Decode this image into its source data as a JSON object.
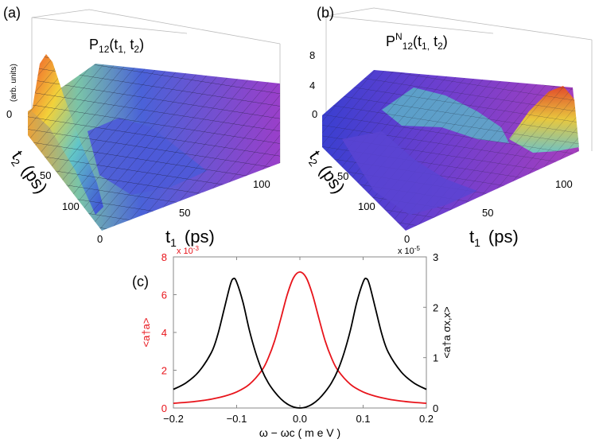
{
  "panels": {
    "a": {
      "label": "(a)",
      "title_main": "P",
      "title_sub": "12",
      "title_args": "(t",
      "title_arg1_sub": "1,",
      "title_arg2": " t",
      "title_arg2_sub": "2",
      "title_close": ")",
      "z_label": "(arb. units)",
      "z_tick": "0",
      "t2_label": "t",
      "t2_sub": "2",
      "t2_unit": "(ps)",
      "t1_label": "t",
      "t1_sub": "1",
      "t1_unit": "(ps)",
      "t2_ticks": [
        "50",
        "100"
      ],
      "t1_ticks": [
        "0",
        "50",
        "100"
      ]
    },
    "b": {
      "label": "(b)",
      "title_main": "P",
      "title_sup": "N",
      "title_sub": "12",
      "title_args": "(t",
      "title_arg1_sub": "1,",
      "title_arg2": " t",
      "title_arg2_sub": "2",
      "title_close": ")",
      "z_ticks": [
        "8",
        "4",
        "0"
      ],
      "t2_label": "t",
      "t2_sub": "2",
      "t2_unit": "(ps)",
      "t1_label": "t",
      "t1_sub": "1",
      "t1_unit": "(ps)",
      "t2_ticks": [
        "50",
        "100"
      ],
      "t1_ticks": [
        "0",
        "50",
        "100"
      ]
    },
    "c": {
      "label": "(c)",
      "left_scale": "x 10",
      "left_scale_exp": "-3",
      "right_scale": "x 10",
      "right_scale_exp": "-5",
      "left_ylabel": "<a†a>",
      "right_ylabel": "<a†a σx,x>",
      "xlabel": "ω − ωc   ( m e V )"
    }
  },
  "colors": {
    "red": "#e8141b",
    "black": "#000000",
    "axis": "#888888"
  },
  "chart_data": [
    {
      "type": "line",
      "title": "",
      "xlabel": "ω − ωc (meV)",
      "x_ticks": [
        -0.2,
        -0.1,
        0.0,
        0.1,
        0.2
      ],
      "x_tick_labels": [
        "−0.2",
        "−0.1",
        "0.0",
        "0.1",
        "0.2"
      ],
      "xlim": [
        -0.2,
        0.2
      ],
      "y_left": {
        "label": "<a†a>",
        "scale": "x 10^-3",
        "ylim": [
          0,
          8
        ],
        "ticks": [
          "0",
          "2",
          "4",
          "6",
          "8"
        ],
        "color": "#e8141b"
      },
      "y_right": {
        "label": "<a†a σx,x>",
        "scale": "x 10^-5",
        "ylim": [
          0,
          3
        ],
        "ticks": [
          "0",
          "1",
          "2",
          "3"
        ],
        "color": "#000000"
      },
      "series": [
        {
          "name": "<a†a>",
          "axis": "left",
          "color": "#e8141b",
          "x": [
            -0.2,
            -0.18,
            -0.16,
            -0.14,
            -0.12,
            -0.1,
            -0.08,
            -0.06,
            -0.05,
            -0.04,
            -0.03,
            -0.02,
            -0.01,
            0.0,
            0.01,
            0.02,
            0.03,
            0.04,
            0.05,
            0.06,
            0.08,
            0.1,
            0.12,
            0.14,
            0.16,
            0.18,
            0.2
          ],
          "values": [
            0.25,
            0.3,
            0.37,
            0.47,
            0.62,
            0.85,
            1.25,
            2.0,
            2.65,
            3.55,
            4.75,
            6.0,
            6.9,
            7.2,
            6.9,
            6.0,
            4.75,
            3.55,
            2.65,
            2.0,
            1.25,
            0.85,
            0.62,
            0.47,
            0.37,
            0.3,
            0.25
          ]
        },
        {
          "name": "<a†a σx,x>",
          "axis": "right",
          "color": "#000000",
          "x": [
            -0.2,
            -0.18,
            -0.16,
            -0.14,
            -0.13,
            -0.12,
            -0.11,
            -0.105,
            -0.1,
            -0.09,
            -0.08,
            -0.07,
            -0.06,
            -0.05,
            -0.04,
            -0.03,
            -0.02,
            -0.01,
            0.0,
            0.01,
            0.02,
            0.03,
            0.04,
            0.05,
            0.06,
            0.07,
            0.08,
            0.09,
            0.1,
            0.105,
            0.11,
            0.12,
            0.13,
            0.14,
            0.16,
            0.18,
            0.2
          ],
          "values": [
            0.37,
            0.5,
            0.72,
            1.1,
            1.45,
            1.95,
            2.45,
            2.57,
            2.5,
            2.1,
            1.55,
            1.1,
            0.75,
            0.5,
            0.32,
            0.18,
            0.08,
            0.02,
            0.0,
            0.02,
            0.08,
            0.18,
            0.32,
            0.5,
            0.75,
            1.1,
            1.55,
            2.1,
            2.5,
            2.57,
            2.45,
            1.95,
            1.45,
            1.1,
            0.72,
            0.5,
            0.37
          ]
        }
      ]
    }
  ]
}
